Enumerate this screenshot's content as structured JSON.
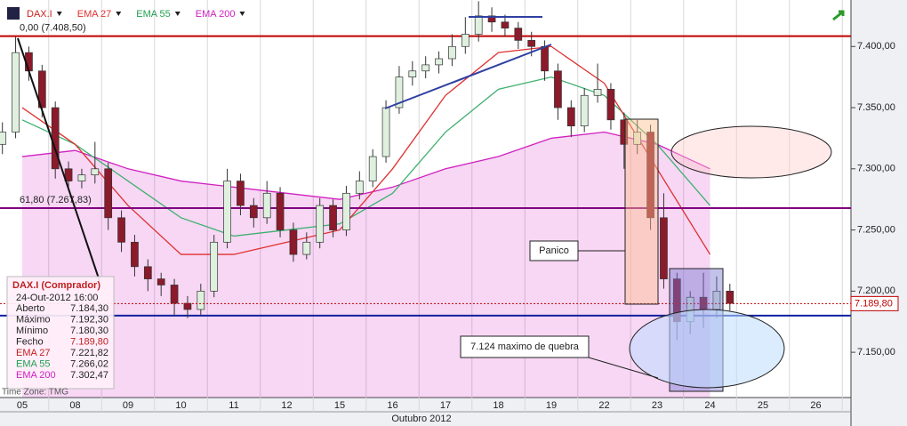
{
  "chart_data": {
    "type": "candlestick",
    "legend": [
      {
        "name": "DAX.I",
        "color": "#d02020"
      },
      {
        "name": "EMA 27",
        "color": "#e03030"
      },
      {
        "name": "EMA 55",
        "color": "#20a050"
      },
      {
        "name": "EMA 200",
        "color": "#d020c0"
      }
    ],
    "days": [
      "05",
      "08",
      "09",
      "10",
      "11",
      "12",
      "15",
      "16",
      "17",
      "18",
      "19",
      "22",
      "23",
      "24",
      "25",
      "26"
    ],
    "x_label": "Outubro 2012",
    "ylim": [
      7113,
      7438
    ],
    "yticks": [
      {
        "value": 7150,
        "label": "7.150,00"
      },
      {
        "value": 7200,
        "label": "7.200,00"
      },
      {
        "value": 7250,
        "label": "7.250,00"
      },
      {
        "value": 7300,
        "label": "7.300,00"
      },
      {
        "value": 7350,
        "label": "7.350,00"
      },
      {
        "value": 7400,
        "label": "7.400,00"
      }
    ],
    "up_color": "#dff0df",
    "down_color": "#8b1a2b",
    "open": [
      7320,
      7330,
      7395,
      7380,
      7350,
      7300,
      7290,
      7295,
      7300,
      7260,
      7240,
      7220,
      7210,
      7205,
      7190,
      7185,
      7200,
      7240,
      7290,
      7270,
      7260,
      7280,
      7250,
      7230,
      7240,
      7270,
      7250,
      7280,
      7290,
      7310,
      7350,
      7375,
      7380,
      7385,
      7390,
      7400,
      7410,
      7425,
      7420,
      7415,
      7405,
      7400,
      7380,
      7350,
      7335,
      7360,
      7365,
      7340,
      7320,
      7330,
      7260,
      7210,
      7175,
      7195,
      7185,
      7200
    ],
    "high": [
      7338,
      7408,
      7400,
      7385,
      7355,
      7306,
      7300,
      7322,
      7305,
      7266,
      7246,
      7226,
      7215,
      7210,
      7196,
      7206,
      7246,
      7300,
      7296,
      7276,
      7290,
      7285,
      7256,
      7248,
      7276,
      7275,
      7286,
      7298,
      7316,
      7356,
      7384,
      7388,
      7392,
      7396,
      7410,
      7424,
      7437,
      7432,
      7426,
      7420,
      7412,
      7405,
      7386,
      7356,
      7366,
      7386,
      7370,
      7346,
      7340,
      7336,
      7280,
      7215,
      7200,
      7215,
      7212,
      7206
    ],
    "low": [
      7312,
      7325,
      7372,
      7342,
      7292,
      7282,
      7284,
      7288,
      7250,
      7232,
      7212,
      7200,
      7196,
      7180,
      7178,
      7180,
      7195,
      7235,
      7262,
      7252,
      7255,
      7244,
      7224,
      7226,
      7235,
      7244,
      7245,
      7275,
      7285,
      7305,
      7345,
      7368,
      7374,
      7378,
      7384,
      7394,
      7404,
      7412,
      7408,
      7398,
      7392,
      7372,
      7340,
      7326,
      7330,
      7354,
      7332,
      7300,
      7312,
      7250,
      7202,
      7160,
      7165,
      7170,
      7178,
      7184
    ],
    "close": [
      7330,
      7395,
      7380,
      7350,
      7300,
      7290,
      7295,
      7300,
      7260,
      7240,
      7220,
      7210,
      7205,
      7190,
      7185,
      7200,
      7240,
      7290,
      7270,
      7260,
      7280,
      7250,
      7230,
      7240,
      7270,
      7250,
      7280,
      7290,
      7310,
      7350,
      7375,
      7380,
      7385,
      7390,
      7400,
      7410,
      7425,
      7420,
      7415,
      7405,
      7400,
      7380,
      7350,
      7335,
      7360,
      7365,
      7340,
      7320,
      7330,
      7260,
      7210,
      7175,
      7195,
      7185,
      7200,
      7190
    ],
    "series": [
      {
        "name": "EMA 200",
        "color": "#d020c0",
        "fill": true,
        "values": [
          7310,
          7315,
          7300,
          7290,
          7285,
          7280,
          7275,
          7285,
          7300,
          7310,
          7325,
          7330,
          7320,
          7300
        ]
      },
      {
        "name": "EMA 55",
        "color": "#40b070",
        "values": [
          7340,
          7320,
          7290,
          7260,
          7245,
          7250,
          7255,
          7280,
          7330,
          7365,
          7375,
          7360,
          7320,
          7270
        ]
      },
      {
        "name": "EMA 27",
        "color": "#e03030",
        "values": [
          7350,
          7320,
          7270,
          7230,
          7230,
          7240,
          7250,
          7300,
          7360,
          7395,
          7400,
          7370,
          7300,
          7230
        ]
      }
    ],
    "hlines": [
      {
        "value": 7408.5,
        "label": "0,00 (7.408,50)",
        "color": "#c00000"
      },
      {
        "value": 7267.83,
        "label": "61,80 (7.267,83)",
        "color": "#800080"
      },
      {
        "value": 7180,
        "color": "#1020a0"
      }
    ],
    "last_price": {
      "value": 7189.8,
      "label": "7.189,80"
    },
    "annotations": [
      "Panico",
      "7.124 maximo de quebra"
    ],
    "info": {
      "title": "DAX.I (Comprador)",
      "date": "24-Out-2012 16:00",
      "rows": [
        {
          "label": "Aberto",
          "value": "7.184,30"
        },
        {
          "label": "Máximo",
          "value": "7.192,30"
        },
        {
          "label": "Mínimo",
          "value": "7.180,30"
        },
        {
          "label": "Fecho",
          "value": "7.189,80"
        },
        {
          "label": "EMA 27",
          "value": "7.221,82"
        },
        {
          "label": "EMA 55",
          "value": "7.266,02"
        },
        {
          "label": "EMA 200",
          "value": "7.302,47"
        }
      ]
    },
    "timezone": "Time Zone: TMG"
  }
}
